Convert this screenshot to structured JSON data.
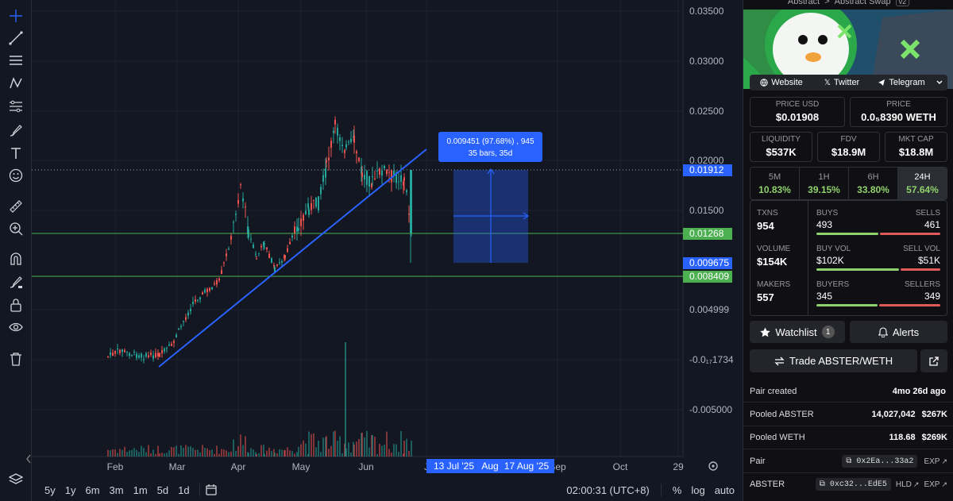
{
  "chart": {
    "y_labels": [
      "0.03500",
      "0.03000",
      "0.02500",
      "0.02000",
      "0.01500",
      "0.004999",
      "-0.0₁₇1734",
      "-0.005000"
    ],
    "price_tags": [
      {
        "label": "0.01912",
        "color": "#2962ff"
      },
      {
        "label": "0.01268",
        "color": "#4caf50"
      },
      {
        "label": "0.009675",
        "color": "#2962ff"
      },
      {
        "label": "0.008409",
        "color": "#4caf50"
      }
    ],
    "x_labels": [
      "Feb",
      "Mar",
      "Apr",
      "May",
      "Jun",
      "J",
      "Sep",
      "Oct",
      "29"
    ],
    "date_tags": [
      "13 Jul '25",
      "Aug",
      "17 Aug '25"
    ],
    "measure": {
      "line1": "0.009451 (97.68%) , 945",
      "line2": "35 bars, 35d"
    },
    "timeframes": [
      "5y",
      "1y",
      "6m",
      "3m",
      "1m",
      "5d",
      "1d"
    ],
    "clock": "02:00:31 (UTC+8)",
    "pct": "%",
    "log": "log",
    "auto": "auto"
  },
  "panel": {
    "breadcrumb": [
      "Abstract",
      ">",
      "Abstract Swap",
      "v2"
    ],
    "links": {
      "website": "Website",
      "twitter": "Twitter",
      "telegram": "Telegram"
    },
    "price_usd": {
      "label": "PRICE USD",
      "value": "$0.01908"
    },
    "price": {
      "label": "PRICE",
      "value": "0.0₅8390 WETH"
    },
    "liquidity": {
      "label": "LIQUIDITY",
      "value": "$537K"
    },
    "fdv": {
      "label": "FDV",
      "value": "$18.9M"
    },
    "mktcap": {
      "label": "MKT CAP",
      "value": "$18.8M"
    },
    "tabs": [
      {
        "label": "5M",
        "value": "10.83%"
      },
      {
        "label": "1H",
        "value": "39.15%"
      },
      {
        "label": "6H",
        "value": "33.80%"
      },
      {
        "label": "24H",
        "value": "57.64%"
      }
    ],
    "stats": {
      "txns": {
        "label": "TXNS",
        "value": "954"
      },
      "buys": {
        "label": "BUYS",
        "value": "493"
      },
      "sells": {
        "label": "SELLS",
        "value": "461"
      },
      "volume": {
        "label": "VOLUME",
        "value": "$154K"
      },
      "buyvol": {
        "label": "BUY VOL",
        "value": "$102K"
      },
      "sellvol": {
        "label": "SELL VOL",
        "value": "$51K"
      },
      "makers": {
        "label": "MAKERS",
        "value": "557"
      },
      "buyers": {
        "label": "BUYERS",
        "value": "345"
      },
      "sellers": {
        "label": "SELLERS",
        "value": "349"
      }
    },
    "watchlist": "Watchlist",
    "watchcount": "1",
    "alerts": "Alerts",
    "trade": "Trade ABSTER/WETH",
    "rows": {
      "created": {
        "label": "Pair created",
        "value": "4mo 26d ago"
      },
      "pooled_abster": {
        "label": "Pooled ABSTER",
        "amount": "14,027,042",
        "usd": "$267K"
      },
      "pooled_weth": {
        "label": "Pooled WETH",
        "amount": "118.68",
        "usd": "$269K"
      },
      "pair": {
        "label": "Pair",
        "addr": "0x2Ea...33a2",
        "exp": "EXP"
      },
      "abster": {
        "label": "ABSTER",
        "addr": "0xc32...EdE5",
        "hld": "HLD",
        "exp": "EXP"
      }
    }
  }
}
